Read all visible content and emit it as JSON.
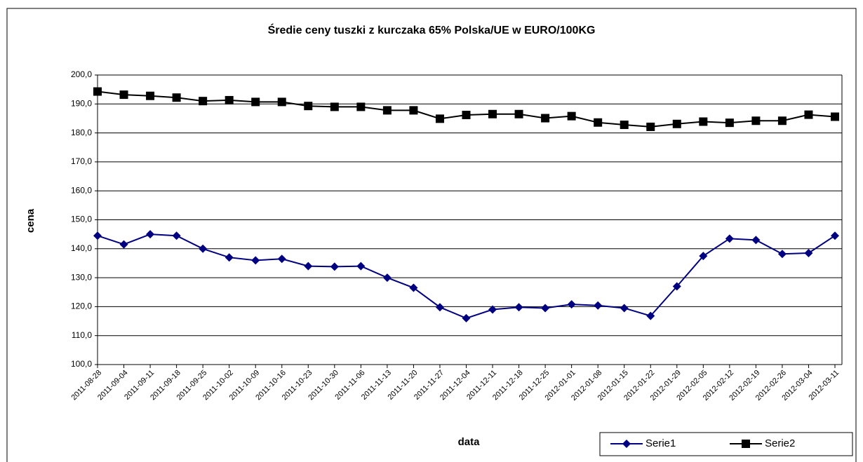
{
  "chart_data": {
    "type": "line",
    "title": "Średie ceny tuszki z kurczaka 65% Polska/UE w EURO/100KG",
    "x_label": "data",
    "y_label": "cena",
    "categories": [
      "2011-08-28",
      "2011-09-04",
      "2011-09-11",
      "2011-09-18",
      "2011-09-25",
      "2011-10-02",
      "2011-10-09",
      "2011-10-16",
      "2011-10-23",
      "2011-10-30",
      "2011-11-06",
      "2011-11-13",
      "2011-11-20",
      "2011-11-27",
      "2011-12-04",
      "2011-12-11",
      "2011-12-18",
      "2011-12-25",
      "2012-01-01",
      "2012-01-08",
      "2012-01-15",
      "2012-01-22",
      "2012-01-29",
      "2012-02-05",
      "2012-02-12",
      "2012-02-19",
      "2012-02-26",
      "2012-03-04",
      "2012-03-11"
    ],
    "series": [
      {
        "name": "Serie1",
        "color": "#000080",
        "marker": "diamond",
        "values": [
          144.5,
          141.5,
          145,
          144.5,
          140,
          137,
          136,
          136.5,
          134,
          133.8,
          134,
          130,
          126.5,
          119.8,
          116,
          119,
          119.8,
          119.5,
          120.8,
          120.4,
          119.5,
          116.8,
          127,
          137.5,
          143.5,
          143,
          138.2,
          138.5,
          144.5
        ]
      },
      {
        "name": "Serie2",
        "color": "#000000",
        "marker": "square",
        "values": [
          194.3,
          193.2,
          192.8,
          192.2,
          191,
          191.3,
          190.7,
          190.7,
          189.3,
          189,
          189,
          187.8,
          187.8,
          184.9,
          186.2,
          186.5,
          186.5,
          185.1,
          185.8,
          183.6,
          182.8,
          182.1,
          183.1,
          183.9,
          183.5,
          184.2,
          184.2,
          186.3,
          185.6
        ]
      }
    ],
    "ylim": [
      100,
      200
    ],
    "yticks": [
      {
        "value": 100,
        "label": "100,0"
      },
      {
        "value": 110,
        "label": "110,0"
      },
      {
        "value": 120,
        "label": "120,0"
      },
      {
        "value": 130,
        "label": "130,0"
      },
      {
        "value": 140,
        "label": "140,0"
      },
      {
        "value": 150,
        "label": "150,0"
      },
      {
        "value": 160,
        "label": "160,0"
      },
      {
        "value": 170,
        "label": "170,0"
      },
      {
        "value": 180,
        "label": "180,0"
      },
      {
        "value": 190,
        "label": "190,0"
      },
      {
        "value": 200,
        "label": "200,0"
      }
    ],
    "grid": true
  }
}
